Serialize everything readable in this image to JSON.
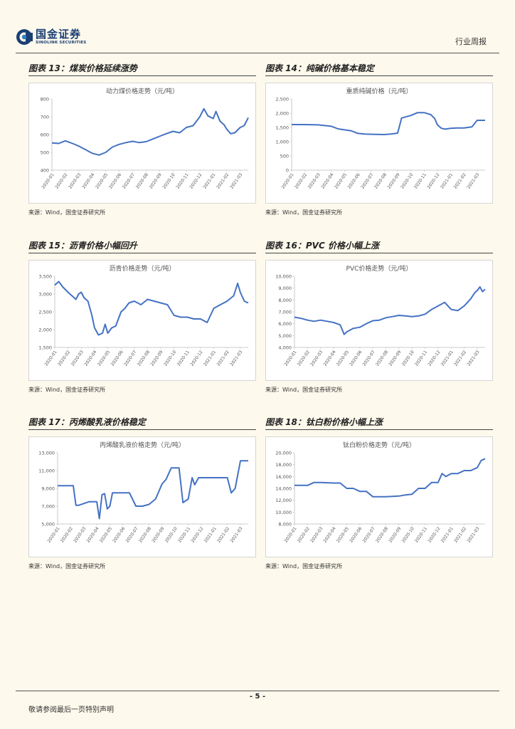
{
  "header": {
    "brand_cn": "国金证券",
    "brand_en": "SINOLINK SECURITIES",
    "report_type": "行业周报"
  },
  "panels": [
    {
      "title": "图表 13：煤炭价格延续涨势",
      "source": "来源：Wind，国金证券研究所"
    },
    {
      "title": "图表 14：纯碱价格基本稳定",
      "source": "来源：Wind，国金证券研究所"
    },
    {
      "title": "图表 15：沥青价格小幅回升",
      "source": "来源：Wind，国金证券研究所"
    },
    {
      "title": "图表 16：PVC 价格小幅上涨",
      "source": "来源：Wind，国金证券研究所"
    },
    {
      "title": "图表 17：丙烯酸乳液价格稳定",
      "source": "来源：Wind，国金证券研究所"
    },
    {
      "title": "图表 18：钛白粉价格小幅上涨",
      "source": "来源：Wind，国金证券研究所"
    }
  ],
  "chart_data": [
    {
      "type": "line",
      "title": "动力煤价格走势（元/吨）",
      "ylim": [
        400,
        800
      ],
      "yticks": [
        400,
        500,
        600,
        700,
        800
      ],
      "categories": [
        "2020-01",
        "2020-02",
        "2020-03",
        "2020-04",
        "2020-05",
        "2020-06",
        "2020-07",
        "2020-08",
        "2020-09",
        "2020-10",
        "2020-11",
        "2020-12",
        "2021-01",
        "2021-02",
        "2021-03"
      ],
      "x": [
        0,
        0.5,
        1,
        1.6,
        2,
        2.5,
        3,
        3.5,
        4,
        4.5,
        5,
        5.5,
        6,
        6.5,
        7,
        7.5,
        8,
        8.5,
        9,
        9.5,
        10,
        10.5,
        11,
        11.3,
        11.6,
        12,
        12.2,
        12.5,
        12.8,
        13,
        13.3,
        13.6,
        14,
        14.3,
        14.6
      ],
      "values": [
        553,
        550,
        565,
        548,
        535,
        515,
        495,
        485,
        500,
        530,
        545,
        555,
        562,
        555,
        560,
        575,
        590,
        605,
        618,
        610,
        640,
        650,
        700,
        745,
        705,
        690,
        730,
        675,
        655,
        630,
        605,
        610,
        640,
        650,
        695
      ]
    },
    {
      "type": "line",
      "title": "重质纯碱价格（元/吨）",
      "ylim": [
        0,
        2500
      ],
      "yticks": [
        0,
        500,
        1000,
        1500,
        2000,
        2500
      ],
      "categories": [
        "2020-01",
        "2020-02",
        "2020-03",
        "2020-04",
        "2020-05",
        "2020-06",
        "2020-07",
        "2020-08",
        "2020-09",
        "2020-10",
        "2020-11",
        "2020-12",
        "2021-01",
        "2021-02",
        "2021-03"
      ],
      "x": [
        0,
        1,
        2,
        3,
        3.5,
        4.5,
        5,
        5.5,
        6,
        7,
        7.5,
        8,
        8.3,
        8.6,
        9,
        9.5,
        10,
        10.5,
        10.8,
        11,
        11.3,
        11.6,
        12,
        12.5,
        13,
        13.3,
        13.6,
        14,
        14.6
      ],
      "values": [
        1600,
        1600,
        1590,
        1540,
        1450,
        1380,
        1290,
        1270,
        1260,
        1250,
        1270,
        1300,
        1830,
        1870,
        1920,
        2020,
        2020,
        1950,
        1810,
        1590,
        1470,
        1440,
        1470,
        1480,
        1480,
        1500,
        1520,
        1750,
        1750
      ]
    },
    {
      "type": "line",
      "title": "沥青价格走势（元/吨）",
      "ylim": [
        1500,
        3500
      ],
      "yticks": [
        1500,
        2000,
        2500,
        3000,
        3500
      ],
      "categories": [
        "2020-01",
        "2020-02",
        "2020-03",
        "2020-04",
        "2020-05",
        "2020-06",
        "2020-07",
        "2020-08",
        "2020-09",
        "2020-10",
        "2020-11",
        "2020-12",
        "2021-01",
        "2021-02",
        "2021-03"
      ],
      "x": [
        0,
        0.3,
        0.6,
        1,
        1.3,
        1.6,
        1.8,
        2,
        2.2,
        2.5,
        2.8,
        3,
        3.3,
        3.6,
        3.8,
        4,
        4.3,
        4.6,
        5,
        5.3,
        5.6,
        6,
        6.5,
        7,
        7.5,
        8,
        8.5,
        9,
        9.5,
        10,
        10.5,
        11,
        11.5,
        12,
        12.5,
        13,
        13.5,
        13.8,
        14,
        14.3,
        14.6
      ],
      "values": [
        3250,
        3350,
        3200,
        3050,
        2950,
        2850,
        3000,
        3050,
        2900,
        2800,
        2400,
        2050,
        1850,
        1900,
        2150,
        1900,
        2050,
        2100,
        2500,
        2600,
        2750,
        2800,
        2700,
        2850,
        2800,
        2750,
        2700,
        2400,
        2350,
        2350,
        2300,
        2300,
        2200,
        2600,
        2700,
        2800,
        2950,
        3300,
        3050,
        2800,
        2750
      ]
    },
    {
      "type": "line",
      "title": "PVC价格走势（元/吨）",
      "ylim": [
        4000,
        10000
      ],
      "yticks": [
        4000,
        5000,
        6000,
        7000,
        8000,
        9000,
        10000
      ],
      "categories": [
        "2020-01",
        "2020-02",
        "2020-03",
        "2020-04",
        "2020-05",
        "2020-06",
        "2020-07",
        "2020-08",
        "2020-09",
        "2020-10",
        "2020-11",
        "2020-12",
        "2021-01",
        "2021-02",
        "2021-03"
      ],
      "x": [
        0,
        0.5,
        1,
        1.5,
        2,
        2.5,
        3,
        3.5,
        3.8,
        4,
        4.5,
        5,
        5.5,
        6,
        6.5,
        7,
        7.5,
        8,
        8.5,
        9,
        9.5,
        10,
        10.5,
        11,
        11.5,
        12,
        12.5,
        13,
        13.5,
        13.8,
        14,
        14.2,
        14.4,
        14.6
      ],
      "values": [
        6550,
        6450,
        6300,
        6200,
        6300,
        6200,
        6100,
        5900,
        5100,
        5300,
        5600,
        5700,
        6000,
        6250,
        6300,
        6500,
        6600,
        6700,
        6650,
        6600,
        6650,
        6800,
        7200,
        7500,
        7800,
        7200,
        7100,
        7500,
        8100,
        8600,
        8800,
        9100,
        8700,
        8900
      ]
    },
    {
      "type": "line",
      "title": "丙烯酸乳液价格走势（元/吨）",
      "ylim": [
        5000,
        13000
      ],
      "yticks": [
        5000,
        7000,
        9000,
        11000,
        13000
      ],
      "categories": [
        "2020-01",
        "2020-02",
        "2020-03",
        "2020-04",
        "2020-05",
        "2020-06",
        "2020-07",
        "2020-08",
        "2020-09",
        "2020-10",
        "2020-11",
        "2020-12",
        "2021-01",
        "2021-02",
        "2021-03"
      ],
      "x": [
        0,
        1.2,
        1.4,
        1.6,
        2,
        2.4,
        3,
        3.2,
        3.4,
        3.6,
        3.8,
        4,
        4.2,
        4.4,
        4.6,
        5,
        5.5,
        6,
        6.2,
        6.5,
        7,
        7.5,
        8,
        8.3,
        8.7,
        9,
        9.3,
        9.6,
        10,
        10.3,
        10.5,
        10.8,
        11,
        11.5,
        12,
        12.5,
        13,
        13.3,
        13.6,
        14,
        14.6
      ],
      "values": [
        9300,
        9300,
        7100,
        7100,
        7300,
        7500,
        7500,
        5600,
        8300,
        8400,
        6700,
        7000,
        8500,
        8500,
        8500,
        8500,
        8500,
        7000,
        7000,
        7000,
        7200,
        7800,
        9500,
        10000,
        11300,
        11300,
        11300,
        7400,
        7800,
        10200,
        9400,
        10200,
        10200,
        10200,
        10200,
        10200,
        10200,
        8500,
        9000,
        12100,
        12100
      ]
    },
    {
      "type": "line",
      "title": "钛白粉价格走势（元/吨）",
      "ylim": [
        8000,
        20000
      ],
      "yticks": [
        8000,
        10000,
        12000,
        14000,
        16000,
        18000,
        20000
      ],
      "categories": [
        "2020-01",
        "2020-02",
        "2020-03",
        "2020-04",
        "2020-05",
        "2020-06",
        "2020-07",
        "2020-08",
        "2020-09",
        "2020-10",
        "2020-11",
        "2020-12",
        "2021-01",
        "2021-02",
        "2021-03"
      ],
      "x": [
        0,
        1,
        1.5,
        2,
        3,
        3.5,
        4,
        4.5,
        5,
        5.5,
        6,
        7,
        8,
        8.5,
        9,
        9.5,
        10,
        10.5,
        11,
        11.3,
        11.6,
        12,
        12.5,
        13,
        13.5,
        14,
        14.3,
        14.6
      ],
      "values": [
        14500,
        14500,
        15000,
        15000,
        14900,
        14900,
        14000,
        14000,
        13500,
        13500,
        12600,
        12600,
        12700,
        12900,
        13000,
        14000,
        14000,
        15000,
        15000,
        16500,
        16000,
        16500,
        16500,
        17000,
        17000,
        17500,
        18700,
        19000
      ]
    }
  ],
  "footer": {
    "page_number": "- 5 -",
    "disclaimer": "敬请参阅最后一页特别声明"
  }
}
